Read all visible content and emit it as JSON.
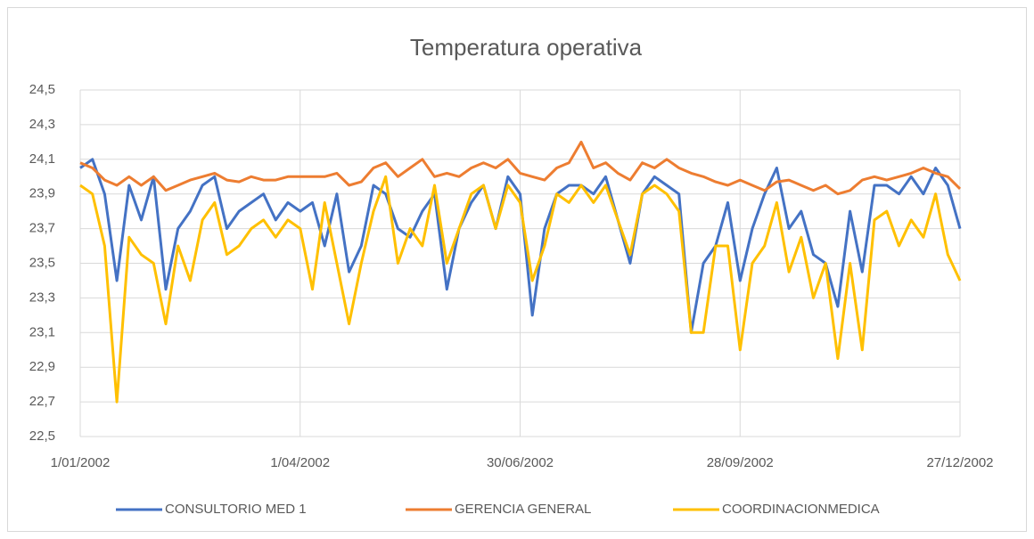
{
  "chart_data": {
    "type": "line",
    "title": "Temperatura operativa",
    "x": [
      "1/01/2002",
      "6/01/2002",
      "11/01/2002",
      "16/01/2002",
      "21/01/2002",
      "26/01/2002",
      "31/01/2002",
      "5/02/2002",
      "10/02/2002",
      "15/02/2002",
      "20/02/2002",
      "25/02/2002",
      "2/03/2002",
      "7/03/2002",
      "12/03/2002",
      "17/03/2002",
      "22/03/2002",
      "27/03/2002",
      "1/04/2002",
      "6/04/2002",
      "11/04/2002",
      "16/04/2002",
      "21/04/2002",
      "26/04/2002",
      "1/05/2002",
      "6/05/2002",
      "11/05/2002",
      "16/05/2002",
      "21/05/2002",
      "26/05/2002",
      "31/05/2002",
      "5/06/2002",
      "10/06/2002",
      "15/06/2002",
      "20/06/2002",
      "25/06/2002",
      "30/06/2002",
      "5/07/2002",
      "10/07/2002",
      "15/07/2002",
      "20/07/2002",
      "25/07/2002",
      "30/07/2002",
      "4/08/2002",
      "9/08/2002",
      "14/08/2002",
      "19/08/2002",
      "24/08/2002",
      "29/08/2002",
      "3/09/2002",
      "8/09/2002",
      "13/09/2002",
      "18/09/2002",
      "23/09/2002",
      "28/09/2002",
      "3/10/2002",
      "8/10/2002",
      "13/10/2002",
      "18/10/2002",
      "23/10/2002",
      "28/10/2002",
      "2/11/2002",
      "7/11/2002",
      "12/11/2002",
      "17/11/2002",
      "22/11/2002",
      "27/11/2002",
      "2/12/2002",
      "7/12/2002",
      "12/12/2002",
      "17/12/2002",
      "22/12/2002",
      "27/12/2002"
    ],
    "series": [
      {
        "name": "CONSULTORIO MED 1",
        "color": "#4472c4",
        "values": [
          24.05,
          24.1,
          23.9,
          23.4,
          23.95,
          23.75,
          24.0,
          23.35,
          23.7,
          23.8,
          23.95,
          24.0,
          23.7,
          23.8,
          23.85,
          23.9,
          23.75,
          23.85,
          23.8,
          23.85,
          23.6,
          23.9,
          23.45,
          23.6,
          23.95,
          23.9,
          23.7,
          23.65,
          23.8,
          23.9,
          23.35,
          23.7,
          23.85,
          23.95,
          23.7,
          24.0,
          23.9,
          23.2,
          23.7,
          23.9,
          23.95,
          23.95,
          23.9,
          24.0,
          23.75,
          23.5,
          23.9,
          24.0,
          23.95,
          23.9,
          23.1,
          23.5,
          23.6,
          23.85,
          23.4,
          23.7,
          23.9,
          24.05,
          23.7,
          23.8,
          23.55,
          23.5,
          23.25,
          23.8,
          23.45,
          23.95,
          23.95,
          23.9,
          24.0,
          23.9,
          24.05,
          23.95,
          23.7
        ]
      },
      {
        "name": "GERENCIA GENERAL",
        "color": "#ed7d31",
        "values": [
          24.08,
          24.05,
          23.98,
          23.95,
          24.0,
          23.95,
          24.0,
          23.92,
          23.95,
          23.98,
          24.0,
          24.02,
          23.98,
          23.97,
          24.0,
          23.98,
          23.98,
          24.0,
          24.0,
          24.0,
          24.0,
          24.02,
          23.95,
          23.97,
          24.05,
          24.08,
          24.0,
          24.05,
          24.1,
          24.0,
          24.02,
          24.0,
          24.05,
          24.08,
          24.05,
          24.1,
          24.02,
          24.0,
          23.98,
          24.05,
          24.08,
          24.2,
          24.05,
          24.08,
          24.02,
          23.98,
          24.08,
          24.05,
          24.1,
          24.05,
          24.02,
          24.0,
          23.97,
          23.95,
          23.98,
          23.95,
          23.92,
          23.97,
          23.98,
          23.95,
          23.92,
          23.95,
          23.9,
          23.92,
          23.98,
          24.0,
          23.98,
          24.0,
          24.02,
          24.05,
          24.02,
          24.0,
          23.93
        ]
      },
      {
        "name": "COORDINACIONMEDICA",
        "color": "#ffc000",
        "values": [
          23.95,
          23.9,
          23.6,
          22.7,
          23.65,
          23.55,
          23.5,
          23.15,
          23.6,
          23.4,
          23.75,
          23.85,
          23.55,
          23.6,
          23.7,
          23.75,
          23.65,
          23.75,
          23.7,
          23.35,
          23.85,
          23.5,
          23.15,
          23.5,
          23.8,
          24.0,
          23.5,
          23.7,
          23.6,
          23.95,
          23.5,
          23.7,
          23.9,
          23.95,
          23.7,
          23.95,
          23.85,
          23.4,
          23.6,
          23.9,
          23.85,
          23.95,
          23.85,
          23.95,
          23.75,
          23.55,
          23.9,
          23.95,
          23.9,
          23.8,
          23.1,
          23.1,
          23.6,
          23.6,
          23.0,
          23.5,
          23.6,
          23.85,
          23.45,
          23.65,
          23.3,
          23.5,
          22.95,
          23.5,
          23.0,
          23.75,
          23.8,
          23.6,
          23.75,
          23.65,
          23.9,
          23.55,
          23.4
        ]
      }
    ],
    "xlim": [
      "1/01/2002",
      "27/12/2002"
    ],
    "xticks": [
      "1/01/2002",
      "1/04/2002",
      "30/06/2002",
      "28/09/2002",
      "27/12/2002"
    ],
    "ylim": [
      22.5,
      24.5
    ],
    "yticks": [
      {
        "value": 22.5,
        "label": "22,5"
      },
      {
        "value": 22.7,
        "label": "22,7"
      },
      {
        "value": 22.9,
        "label": "22,9"
      },
      {
        "value": 23.1,
        "label": "23,1"
      },
      {
        "value": 23.3,
        "label": "23,3"
      },
      {
        "value": 23.5,
        "label": "23,5"
      },
      {
        "value": 23.7,
        "label": "23,7"
      },
      {
        "value": 23.9,
        "label": "23,9"
      },
      {
        "value": 24.1,
        "label": "24,1"
      },
      {
        "value": 24.3,
        "label": "24,3"
      },
      {
        "value": 24.5,
        "label": "24,5"
      }
    ],
    "grid": true,
    "legend": "bottom"
  }
}
